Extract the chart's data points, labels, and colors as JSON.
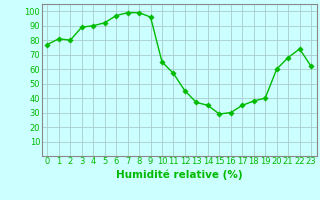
{
  "x": [
    0,
    1,
    2,
    3,
    4,
    5,
    6,
    7,
    8,
    9,
    10,
    11,
    12,
    13,
    14,
    15,
    16,
    17,
    18,
    19,
    20,
    21,
    22,
    23
  ],
  "y": [
    77,
    81,
    80,
    89,
    90,
    92,
    97,
    99,
    99,
    96,
    65,
    57,
    45,
    37,
    35,
    29,
    30,
    35,
    38,
    40,
    60,
    68,
    74,
    62
  ],
  "line_color": "#00bb00",
  "marker_color": "#00bb00",
  "bg_color": "#ccffff",
  "grid_color": "#aacccc",
  "spine_color": "#888888",
  "xlabel": "Humidité relative (%)",
  "xlabel_color": "#00bb00",
  "tick_color": "#00bb00",
  "ylim": [
    0,
    105
  ],
  "yticks": [
    10,
    20,
    30,
    40,
    50,
    60,
    70,
    80,
    90,
    100
  ],
  "xlim": [
    -0.5,
    23.5
  ],
  "marker_size": 2.8,
  "line_width": 1.0,
  "tick_font_size": 6.0,
  "xlabel_font_size": 7.5
}
